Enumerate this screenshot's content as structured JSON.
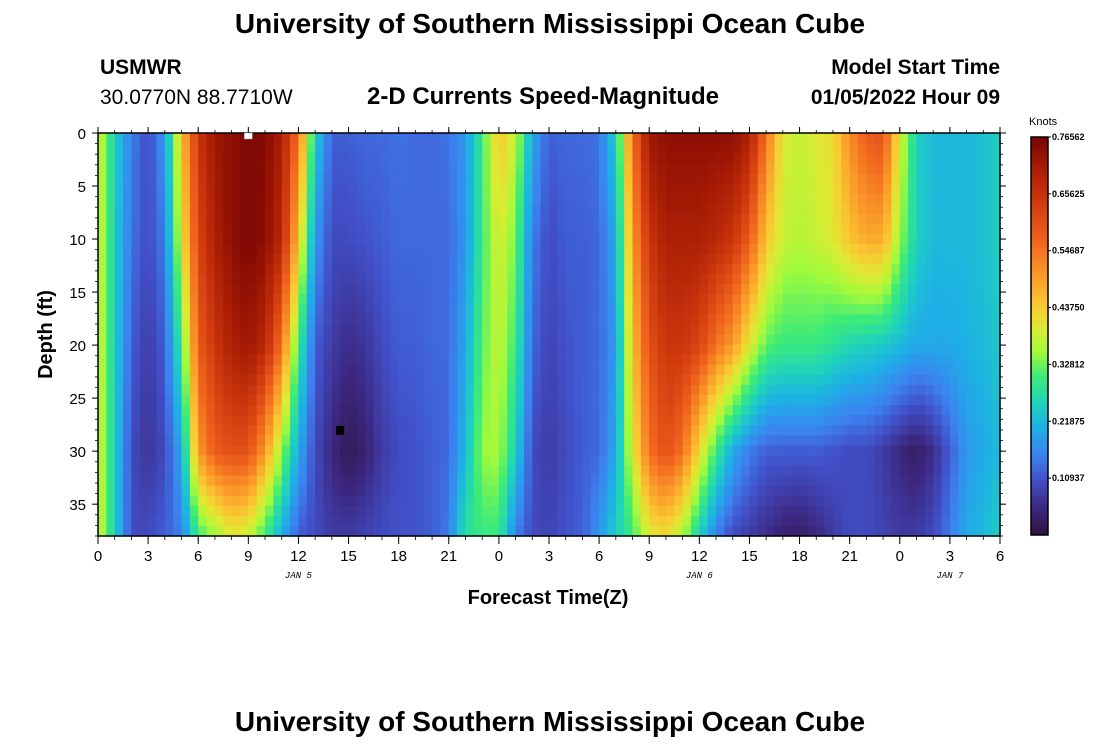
{
  "header": {
    "title": "University of Southern Mississippi Ocean Cube",
    "station": "USMWR",
    "coords": "30.0770N  88.7710W",
    "subtitle": "2-D Currents Speed-Magnitude",
    "start_label": "Model Start Time",
    "start_value": "01/05/2022 Hour 09"
  },
  "footer": {
    "title": "University of Southern Mississippi Ocean Cube"
  },
  "chart_data": {
    "type": "heatmap",
    "title": "2-D Currents Speed-Magnitude",
    "xlabel": "Forecast Time(Z)",
    "ylabel": "Depth (ft)",
    "xlim": [
      0,
      54
    ],
    "ylim": [
      38,
      0
    ],
    "x_tick_labels": [
      "0",
      "3",
      "6",
      "9",
      "12",
      "15",
      "18",
      "21",
      "0",
      "3",
      "6",
      "9",
      "12",
      "15",
      "18",
      "21",
      "0",
      "3",
      "6"
    ],
    "day_labels": [
      {
        "label": "JAN 5",
        "hour": 12
      },
      {
        "label": "JAN 6",
        "hour": 36
      },
      {
        "label": "JAN 7",
        "hour": 51
      }
    ],
    "y_ticks": [
      0,
      5,
      10,
      15,
      20,
      25,
      30,
      35
    ],
    "colorbar": {
      "unit": "Knots",
      "min": 0.0,
      "max": 0.765625,
      "tick_values": [
        0.109375,
        0.21875,
        0.328125,
        0.4375,
        0.546875,
        0.65625,
        0.765625
      ],
      "tick_labels": [
        "0.10937",
        "0.21875",
        "0.32812",
        "0.43750",
        "0.54687",
        "0.65625",
        "0.76562"
      ]
    },
    "markers": [
      {
        "x": 9,
        "y": 0,
        "color": "#ffffff"
      },
      {
        "x": 14.5,
        "y": 28,
        "color": "#000000"
      }
    ],
    "columns_hours": [
      0,
      1,
      2,
      3,
      4,
      5,
      6,
      7,
      8,
      9,
      10,
      11,
      12,
      13,
      14,
      15,
      16,
      17,
      18,
      19,
      20,
      21,
      22,
      23,
      24,
      25,
      26,
      27,
      28,
      29,
      30,
      31,
      32,
      33,
      34,
      35,
      36,
      37,
      38,
      39,
      40,
      41,
      42,
      43,
      44,
      45,
      46,
      47,
      48,
      49,
      50,
      51,
      52,
      53,
      54
    ],
    "profile_depths_ft": [
      0,
      10,
      20,
      30,
      38
    ],
    "speed_knots": [
      [
        0.4,
        0.4,
        0.4,
        0.4,
        0.4
      ],
      [
        0.25,
        0.25,
        0.25,
        0.25,
        0.25
      ],
      [
        0.15,
        0.14,
        0.12,
        0.1,
        0.1
      ],
      [
        0.1,
        0.1,
        0.08,
        0.07,
        0.1
      ],
      [
        0.18,
        0.15,
        0.12,
        0.1,
        0.12
      ],
      [
        0.45,
        0.4,
        0.3,
        0.2,
        0.15
      ],
      [
        0.65,
        0.62,
        0.58,
        0.5,
        0.3
      ],
      [
        0.72,
        0.7,
        0.65,
        0.58,
        0.35
      ],
      [
        0.74,
        0.74,
        0.7,
        0.6,
        0.4
      ],
      [
        0.76,
        0.76,
        0.72,
        0.6,
        0.38
      ],
      [
        0.75,
        0.74,
        0.68,
        0.5,
        0.3
      ],
      [
        0.7,
        0.68,
        0.55,
        0.35,
        0.2
      ],
      [
        0.55,
        0.45,
        0.3,
        0.2,
        0.12
      ],
      [
        0.25,
        0.18,
        0.12,
        0.1,
        0.1
      ],
      [
        0.12,
        0.1,
        0.08,
        0.05,
        0.08
      ],
      [
        0.12,
        0.1,
        0.06,
        0.02,
        0.08
      ],
      [
        0.13,
        0.11,
        0.07,
        0.04,
        0.09
      ],
      [
        0.13,
        0.12,
        0.1,
        0.08,
        0.1
      ],
      [
        0.14,
        0.13,
        0.12,
        0.1,
        0.11
      ],
      [
        0.13,
        0.13,
        0.12,
        0.11,
        0.11
      ],
      [
        0.13,
        0.13,
        0.13,
        0.12,
        0.12
      ],
      [
        0.14,
        0.13,
        0.13,
        0.13,
        0.15
      ],
      [
        0.18,
        0.18,
        0.2,
        0.22,
        0.28
      ],
      [
        0.3,
        0.3,
        0.32,
        0.35,
        0.3
      ],
      [
        0.45,
        0.4,
        0.38,
        0.36,
        0.3
      ],
      [
        0.38,
        0.33,
        0.3,
        0.25,
        0.15
      ],
      [
        0.2,
        0.15,
        0.13,
        0.1,
        0.1
      ],
      [
        0.12,
        0.1,
        0.09,
        0.08,
        0.09
      ],
      [
        0.13,
        0.12,
        0.11,
        0.1,
        0.11
      ],
      [
        0.13,
        0.12,
        0.12,
        0.12,
        0.12
      ],
      [
        0.14,
        0.13,
        0.13,
        0.13,
        0.18
      ],
      [
        0.25,
        0.2,
        0.18,
        0.2,
        0.25
      ],
      [
        0.55,
        0.5,
        0.45,
        0.4,
        0.3
      ],
      [
        0.72,
        0.65,
        0.6,
        0.55,
        0.4
      ],
      [
        0.74,
        0.7,
        0.65,
        0.6,
        0.42
      ],
      [
        0.74,
        0.7,
        0.65,
        0.55,
        0.36
      ],
      [
        0.74,
        0.7,
        0.62,
        0.42,
        0.25
      ],
      [
        0.74,
        0.68,
        0.55,
        0.3,
        0.15
      ],
      [
        0.74,
        0.65,
        0.5,
        0.2,
        0.1
      ],
      [
        0.7,
        0.58,
        0.4,
        0.15,
        0.08
      ],
      [
        0.55,
        0.45,
        0.32,
        0.12,
        0.06
      ],
      [
        0.4,
        0.38,
        0.3,
        0.12,
        0.04
      ],
      [
        0.38,
        0.37,
        0.3,
        0.12,
        0.03
      ],
      [
        0.4,
        0.38,
        0.3,
        0.12,
        0.05
      ],
      [
        0.42,
        0.4,
        0.28,
        0.11,
        0.08
      ],
      [
        0.52,
        0.45,
        0.26,
        0.1,
        0.1
      ],
      [
        0.58,
        0.48,
        0.25,
        0.1,
        0.1
      ],
      [
        0.6,
        0.48,
        0.24,
        0.08,
        0.09
      ],
      [
        0.4,
        0.35,
        0.22,
        0.05,
        0.08
      ],
      [
        0.25,
        0.25,
        0.2,
        0.03,
        0.08
      ],
      [
        0.22,
        0.22,
        0.2,
        0.06,
        0.1
      ],
      [
        0.22,
        0.22,
        0.2,
        0.12,
        0.15
      ],
      [
        0.22,
        0.22,
        0.21,
        0.18,
        0.2
      ],
      [
        0.23,
        0.23,
        0.22,
        0.2,
        0.22
      ],
      [
        0.25,
        0.25,
        0.24,
        0.22,
        0.25
      ]
    ]
  }
}
